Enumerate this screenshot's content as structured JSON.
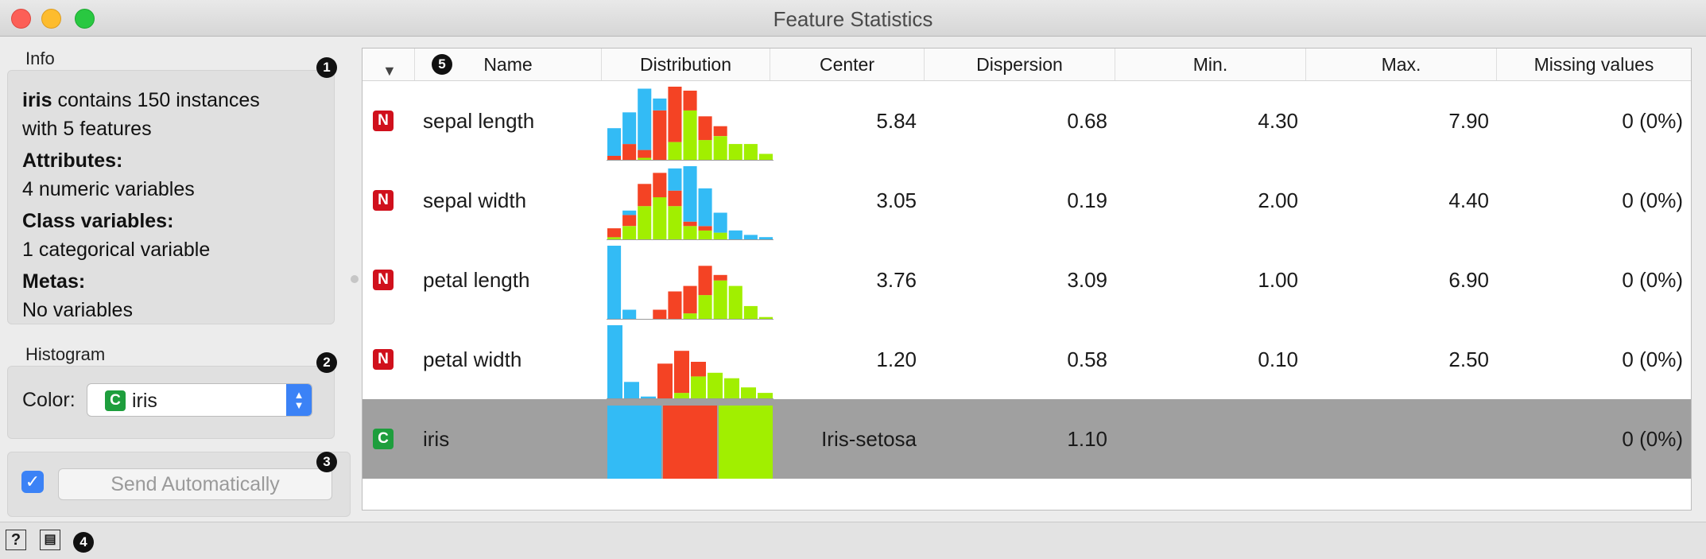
{
  "window": {
    "title": "Feature Statistics"
  },
  "info": {
    "label": "Info",
    "dataset": "iris",
    "line1_rest": " contains 150 instances",
    "line2": "with 5 features",
    "attributes_label": "Attributes:",
    "attributes_value": "4 numeric variables",
    "class_label": "Class variables:",
    "class_value": "1 categorical variable",
    "metas_label": "Metas:",
    "metas_value": "No variables"
  },
  "histogram": {
    "label": "Histogram",
    "color_label": "Color:",
    "color_badge": "C",
    "color_value": "iris"
  },
  "commit": {
    "checked": true,
    "check_glyph": "✓",
    "button_label": "Send Automatically"
  },
  "callouts": [
    "1",
    "2",
    "3",
    "4",
    "5"
  ],
  "colors": {
    "setosa": "#33bbf5",
    "versicolor": "#f44324",
    "virginica": "#a1ef00",
    "numeric_badge": "#d0101c",
    "categorical_badge": "#1e9e3d",
    "selected_row": "#a0a0a0"
  },
  "table": {
    "sort_glyph": "▼",
    "columns": [
      "Name",
      "Distribution",
      "Center",
      "Dispersion",
      "Min.",
      "Max.",
      "Missing values"
    ],
    "rows": [
      {
        "type": "N",
        "name": "sepal length",
        "center": "5.84",
        "dispersion": "0.68",
        "min": "4.30",
        "max": "7.90",
        "missing": "0 (0%)",
        "histogram": [
          [
            14,
            2,
            0
          ],
          [
            16,
            8,
            0
          ],
          [
            31,
            4,
            1
          ],
          [
            6,
            25,
            0
          ],
          [
            0,
            28,
            9
          ],
          [
            0,
            10,
            25
          ],
          [
            0,
            12,
            10
          ],
          [
            0,
            5,
            12
          ],
          [
            0,
            0,
            8
          ],
          [
            0,
            0,
            8
          ],
          [
            0,
            0,
            3
          ]
        ]
      },
      {
        "type": "N",
        "name": "sepal width",
        "center": "3.05",
        "dispersion": "0.19",
        "min": "2.00",
        "max": "4.40",
        "missing": "0 (0%)",
        "histogram": [
          [
            0,
            4,
            1
          ],
          [
            2,
            5,
            6
          ],
          [
            0,
            10,
            15
          ],
          [
            0,
            11,
            19
          ],
          [
            10,
            7,
            15
          ],
          [
            25,
            2,
            6
          ],
          [
            17,
            2,
            4
          ],
          [
            9,
            0,
            3
          ],
          [
            4,
            0,
            0
          ],
          [
            2,
            0,
            0
          ],
          [
            1,
            0,
            0
          ]
        ]
      },
      {
        "type": "N",
        "name": "petal length",
        "center": "3.76",
        "dispersion": "3.09",
        "min": "1.00",
        "max": "6.90",
        "missing": "0 (0%)",
        "histogram": [
          [
            40,
            0,
            0
          ],
          [
            5,
            0,
            0
          ],
          [
            0,
            0,
            0
          ],
          [
            0,
            5,
            0
          ],
          [
            0,
            15,
            0
          ],
          [
            0,
            15,
            3
          ],
          [
            0,
            16,
            13
          ],
          [
            0,
            3,
            21
          ],
          [
            0,
            0,
            18
          ],
          [
            0,
            0,
            7
          ],
          [
            0,
            0,
            1
          ]
        ]
      },
      {
        "type": "N",
        "name": "petal width",
        "center": "1.20",
        "dispersion": "0.58",
        "min": "0.10",
        "max": "2.50",
        "missing": "0 (0%)",
        "histogram": [
          [
            40,
            0,
            0
          ],
          [
            9,
            0,
            0
          ],
          [
            1,
            0,
            0
          ],
          [
            0,
            19,
            0
          ],
          [
            0,
            23,
            3
          ],
          [
            0,
            8,
            12
          ],
          [
            0,
            0,
            14
          ],
          [
            0,
            0,
            11
          ],
          [
            0,
            0,
            6
          ],
          [
            0,
            0,
            3
          ]
        ]
      },
      {
        "type": "C",
        "name": "iris",
        "center": "Iris-setosa",
        "dispersion": "1.10",
        "min": "",
        "max": "",
        "missing": "0 (0%)",
        "histogram": [
          [
            50,
            0,
            0
          ],
          [
            0,
            50,
            0
          ],
          [
            0,
            0,
            50
          ]
        ],
        "selected": true
      }
    ]
  },
  "status_icons": [
    "?",
    "▤"
  ]
}
